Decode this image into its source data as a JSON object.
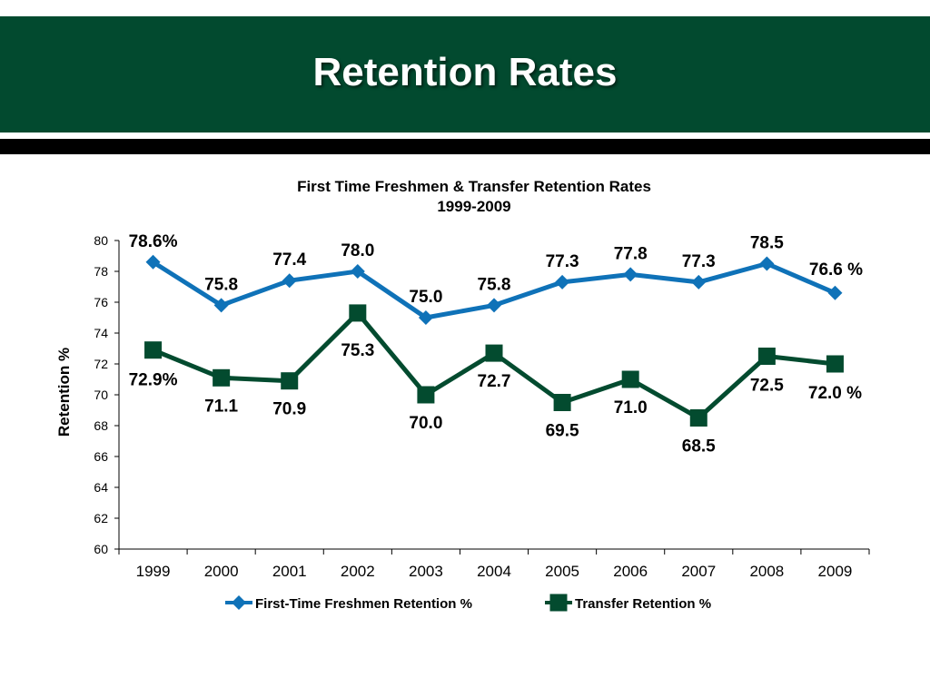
{
  "header": {
    "title": "Retention Rates"
  },
  "colors": {
    "banner": "#024a2f",
    "freshmen_series": "#0f72b8",
    "transfer_series": "#034b2f"
  },
  "chart_data": {
    "type": "line",
    "title": "First Time Freshmen & Transfer Retention Rates",
    "subtitle": "1999-2009",
    "xlabel": "",
    "ylabel": "Retention %",
    "ylim": [
      60,
      80
    ],
    "yticks": [
      60,
      62,
      64,
      66,
      68,
      70,
      72,
      74,
      76,
      78,
      80
    ],
    "categories": [
      "1999",
      "2000",
      "2001",
      "2002",
      "2003",
      "2004",
      "2005",
      "2006",
      "2007",
      "2008",
      "2009"
    ],
    "grid": false,
    "legend_position": "bottom",
    "series": [
      {
        "name": "First-Time Freshmen Retention %",
        "marker": "diamond",
        "color": "#0f72b8",
        "values": [
          78.6,
          75.8,
          77.4,
          78.0,
          75.0,
          75.8,
          77.3,
          77.8,
          77.3,
          78.5,
          76.6
        ],
        "labels": [
          "78.6%",
          "75.8",
          "77.4",
          "78.0",
          "75.0",
          "75.8",
          "77.3",
          "77.8",
          "77.3",
          "78.5",
          "76.6 %"
        ]
      },
      {
        "name": "Transfer Retention %",
        "marker": "square",
        "color": "#034b2f",
        "values": [
          72.9,
          71.1,
          70.9,
          75.3,
          70.0,
          72.7,
          69.5,
          71.0,
          68.5,
          72.5,
          72.0
        ],
        "labels": [
          "72.9%",
          "71.1",
          "70.9",
          "75.3",
          "70.0",
          "72.7",
          "69.5",
          "71.0",
          "68.5",
          "72.5",
          "72.0 %"
        ]
      }
    ]
  }
}
